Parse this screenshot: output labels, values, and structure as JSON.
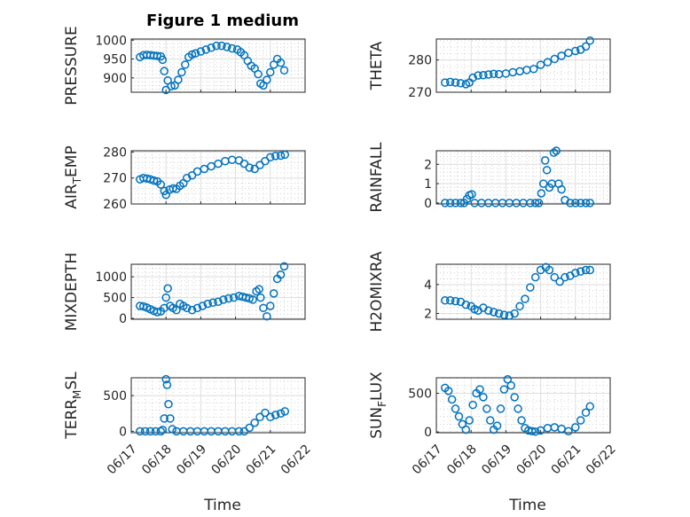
{
  "figure": {
    "title": "Figure 1 medium",
    "xlabel": "Time",
    "marker_color": "#0072bd"
  },
  "chart_data": [
    {
      "type": "scatter",
      "ylabel": "PRESSURE",
      "subscript_at": null,
      "ylim": [
        862,
        1003
      ],
      "yticks": [
        900,
        950,
        1000
      ],
      "show_xticks": false,
      "title": "Figure 1 medium",
      "xlim": [
        0,
        5
      ],
      "x": [
        0.25,
        0.35,
        0.45,
        0.55,
        0.65,
        0.75,
        0.85,
        0.9,
        0.95,
        1.0,
        1.05,
        1.15,
        1.25,
        1.35,
        1.45,
        1.55,
        1.65,
        1.75,
        1.85,
        2.0,
        2.15,
        2.3,
        2.45,
        2.6,
        2.75,
        2.9,
        3.05,
        3.15,
        3.25,
        3.35,
        3.45,
        3.55,
        3.65,
        3.72,
        3.8,
        3.9,
        4.0,
        4.1,
        4.2,
        4.3,
        4.4
      ],
      "y": [
        955,
        960,
        961,
        960,
        959,
        958,
        957,
        948,
        918,
        868,
        893,
        878,
        880,
        895,
        915,
        935,
        955,
        962,
        965,
        970,
        975,
        980,
        985,
        985,
        982,
        978,
        975,
        968,
        960,
        945,
        932,
        925,
        910,
        885,
        880,
        895,
        915,
        935,
        950,
        940,
        920
      ]
    },
    {
      "type": "scatter",
      "ylabel": "THETA",
      "subscript_at": null,
      "ylim": [
        270,
        286.5
      ],
      "yticks": [
        270,
        280
      ],
      "show_xticks": false,
      "xlim": [
        0,
        5
      ],
      "x": [
        0.25,
        0.4,
        0.55,
        0.7,
        0.85,
        0.95,
        1.05,
        1.2,
        1.35,
        1.5,
        1.65,
        1.8,
        2.0,
        2.2,
        2.4,
        2.6,
        2.8,
        3.0,
        3.2,
        3.4,
        3.6,
        3.8,
        4.0,
        4.15,
        4.3,
        4.42
      ],
      "y": [
        273,
        273.2,
        273,
        272.8,
        272.5,
        273,
        274.5,
        275.2,
        275.3,
        275.5,
        275.7,
        275.6,
        275.8,
        276.2,
        276.5,
        276.9,
        277.2,
        278.5,
        279.3,
        280.3,
        281.3,
        282.2,
        282.8,
        283.2,
        284.2,
        286
      ]
    },
    {
      "type": "scatter",
      "ylabel": "AIR",
      "subscript": "T",
      "ylabel_after": "EMP",
      "ylim": [
        260,
        280.5
      ],
      "yticks": [
        260,
        270,
        280
      ],
      "show_xticks": false,
      "xlim": [
        0,
        5
      ],
      "x": [
        0.25,
        0.35,
        0.45,
        0.55,
        0.65,
        0.75,
        0.85,
        0.95,
        1.0,
        1.1,
        1.2,
        1.3,
        1.4,
        1.5,
        1.6,
        1.75,
        1.9,
        2.1,
        2.3,
        2.5,
        2.7,
        2.9,
        3.1,
        3.25,
        3.4,
        3.55,
        3.7,
        3.85,
        4.0,
        4.15,
        4.3,
        4.42
      ],
      "y": [
        269.5,
        270,
        269.8,
        269.5,
        269,
        268.7,
        267.5,
        265,
        263.5,
        265.5,
        266,
        265.8,
        267,
        268,
        270,
        271,
        272.5,
        273.5,
        274.5,
        275.5,
        276.5,
        277,
        276.8,
        275.5,
        274,
        273.5,
        275,
        276.5,
        278,
        278.5,
        278.6,
        279
      ]
    },
    {
      "type": "scatter",
      "ylabel": "RAINFALL",
      "subscript_at": null,
      "ylim": [
        -0.05,
        2.7
      ],
      "yticks": [
        0,
        1,
        2
      ],
      "show_xticks": false,
      "xlim": [
        0,
        5
      ],
      "x": [
        0.25,
        0.4,
        0.55,
        0.7,
        0.8,
        0.88,
        0.95,
        1.02,
        1.1,
        1.3,
        1.5,
        1.7,
        1.9,
        2.1,
        2.3,
        2.5,
        2.7,
        2.85,
        2.95,
        3.02,
        3.08,
        3.13,
        3.18,
        3.25,
        3.32,
        3.38,
        3.45,
        3.52,
        3.6,
        3.7,
        3.85,
        4.0,
        4.15,
        4.3,
        4.42
      ],
      "y": [
        0,
        0,
        0,
        0,
        0,
        0.2,
        0.4,
        0.45,
        0,
        0,
        0,
        0,
        0,
        0,
        0,
        0,
        0,
        0,
        0,
        0.5,
        1.0,
        2.2,
        1.7,
        0.8,
        1.0,
        2.6,
        2.7,
        1.0,
        0.7,
        0.15,
        0,
        0,
        0,
        0,
        0
      ]
    },
    {
      "type": "scatter",
      "ylabel": "MIXDEPTH",
      "subscript_at": null,
      "ylim": [
        -20,
        1300
      ],
      "yticks": [
        0,
        500,
        1000
      ],
      "show_xticks": false,
      "xlim": [
        0,
        5
      ],
      "x": [
        0.25,
        0.35,
        0.45,
        0.55,
        0.65,
        0.75,
        0.85,
        0.95,
        1.0,
        1.05,
        1.12,
        1.2,
        1.3,
        1.4,
        1.5,
        1.6,
        1.75,
        1.9,
        2.05,
        2.2,
        2.35,
        2.5,
        2.65,
        2.8,
        2.95,
        3.1,
        3.2,
        3.3,
        3.4,
        3.5,
        3.6,
        3.68,
        3.72,
        3.8,
        3.9,
        4.0,
        4.1,
        4.2,
        4.3,
        4.4
      ],
      "y": [
        300,
        290,
        260,
        220,
        180,
        150,
        170,
        250,
        500,
        720,
        300,
        250,
        200,
        350,
        300,
        250,
        200,
        250,
        300,
        350,
        380,
        400,
        450,
        480,
        500,
        540,
        520,
        500,
        480,
        450,
        650,
        700,
        500,
        250,
        50,
        300,
        600,
        950,
        1050,
        1250
      ]
    },
    {
      "type": "scatter",
      "ylabel": "H2OMIXRA",
      "subscript_at": null,
      "ylim": [
        1.6,
        5.4
      ],
      "yticks": [
        2,
        4
      ],
      "show_xticks": false,
      "xlim": [
        0,
        5
      ],
      "x": [
        0.25,
        0.4,
        0.55,
        0.7,
        0.85,
        1.0,
        1.1,
        1.2,
        1.35,
        1.5,
        1.65,
        1.8,
        1.95,
        2.1,
        2.25,
        2.4,
        2.55,
        2.7,
        2.85,
        3.0,
        3.15,
        3.25,
        3.4,
        3.55,
        3.7,
        3.85,
        4.0,
        4.15,
        4.3,
        4.42
      ],
      "y": [
        2.9,
        2.9,
        2.85,
        2.8,
        2.6,
        2.5,
        2.3,
        2.2,
        2.4,
        2.2,
        2.1,
        2.0,
        1.9,
        1.85,
        2.0,
        2.5,
        3.0,
        3.8,
        4.5,
        5.0,
        5.2,
        5.0,
        4.5,
        4.2,
        4.5,
        4.6,
        4.8,
        4.9,
        5.0,
        5.0
      ]
    },
    {
      "type": "scatter",
      "ylabel": "TERR",
      "subscript": "M",
      "ylabel_after": "SL",
      "ylim": [
        -20,
        750
      ],
      "yticks": [
        0,
        500
      ],
      "show_xticks": true,
      "xlim": [
        0,
        5
      ],
      "x": [
        0.25,
        0.4,
        0.55,
        0.7,
        0.85,
        0.9,
        0.95,
        1.0,
        1.03,
        1.07,
        1.12,
        1.18,
        1.3,
        1.5,
        1.7,
        1.9,
        2.1,
        2.3,
        2.5,
        2.7,
        2.9,
        3.1,
        3.25,
        3.4,
        3.55,
        3.7,
        3.85,
        4.0,
        4.15,
        4.3,
        4.42
      ],
      "y": [
        0,
        0,
        0,
        0,
        0,
        20,
        180,
        730,
        650,
        380,
        180,
        30,
        0,
        0,
        0,
        0,
        0,
        0,
        0,
        0,
        0,
        0,
        0,
        50,
        120,
        200,
        260,
        200,
        230,
        250,
        280
      ]
    },
    {
      "type": "scatter",
      "ylabel": "SUN",
      "subscript": "F",
      "ylabel_after": "LUX",
      "ylim": [
        -10,
        700
      ],
      "yticks": [
        0,
        500
      ],
      "show_xticks": true,
      "xlim": [
        0,
        5
      ],
      "x": [
        0.25,
        0.35,
        0.45,
        0.55,
        0.65,
        0.75,
        0.85,
        0.95,
        1.05,
        1.15,
        1.25,
        1.35,
        1.45,
        1.55,
        1.65,
        1.75,
        1.85,
        1.95,
        2.05,
        2.15,
        2.25,
        2.35,
        2.45,
        2.55,
        2.65,
        2.75,
        2.85,
        3.0,
        3.2,
        3.4,
        3.6,
        3.8,
        4.0,
        4.15,
        4.3,
        4.42
      ],
      "y": [
        570,
        530,
        420,
        300,
        200,
        100,
        30,
        150,
        350,
        500,
        550,
        450,
        300,
        150,
        30,
        80,
        300,
        550,
        680,
        600,
        450,
        300,
        150,
        50,
        20,
        10,
        5,
        20,
        50,
        60,
        40,
        10,
        60,
        150,
        250,
        330
      ]
    }
  ],
  "xaxis": {
    "tick_labels": [
      "06/17",
      "06/18",
      "06/19",
      "06/20",
      "06/21",
      "06/22"
    ]
  }
}
